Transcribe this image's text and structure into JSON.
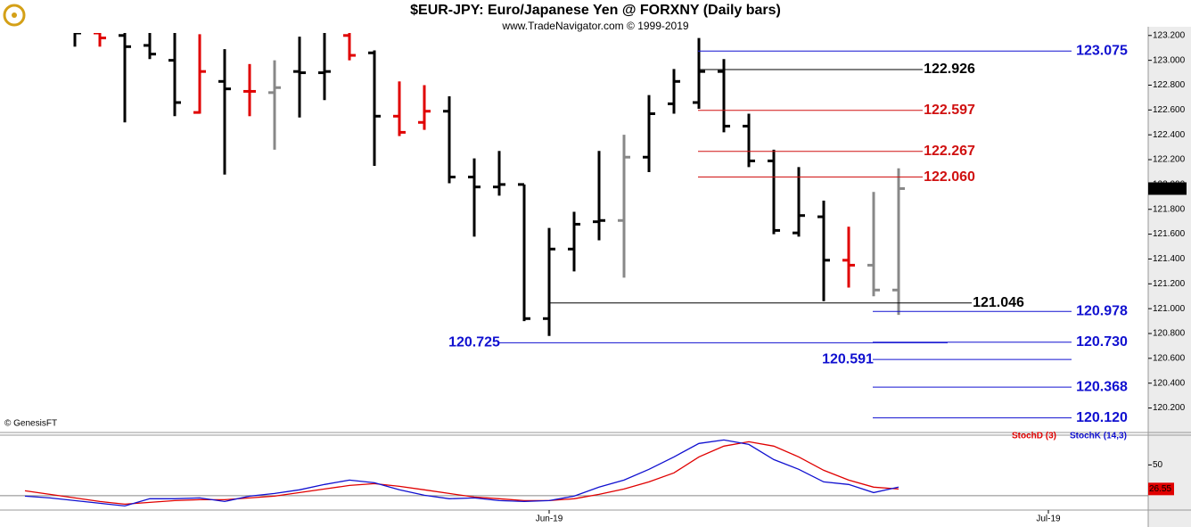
{
  "chart_data": [
    {
      "type": "ohlc",
      "title": "$EUR-JPY:  Euro/Japanese Yen @ FORXNY  (Daily bars)",
      "subtitle": "www.TradeNavigator.com © 1999-2019",
      "credit": "© GenesisFT",
      "x": [
        0,
        1,
        2,
        3,
        4,
        5,
        6,
        7,
        8,
        9,
        10,
        11,
        12,
        13,
        14,
        15,
        16,
        17,
        18,
        19,
        20,
        21,
        22,
        23,
        24,
        25,
        26,
        27,
        28,
        29,
        30,
        31,
        32,
        33
      ],
      "open": [
        123.25,
        123.22,
        123.2,
        123.12,
        123.0,
        122.58,
        122.83,
        122.75,
        122.74,
        122.91,
        122.9,
        123.2,
        123.06,
        122.55,
        122.5,
        122.59,
        122.06,
        121.98,
        122.0,
        120.92,
        121.48,
        121.7,
        121.71,
        122.22,
        122.65,
        122.66,
        122.91,
        122.47,
        122.19,
        121.61,
        121.74,
        121.39,
        121.35,
        121.15
      ],
      "high": [
        123.3,
        123.25,
        123.3,
        123.28,
        123.25,
        123.21,
        123.09,
        122.97,
        123.0,
        123.19,
        123.25,
        123.25,
        123.08,
        122.83,
        122.8,
        122.71,
        122.21,
        122.27,
        122.0,
        121.65,
        121.78,
        122.27,
        122.4,
        122.72,
        122.93,
        123.18,
        123.01,
        122.57,
        122.28,
        122.14,
        121.87,
        121.66,
        121.94,
        122.13
      ],
      "low": [
        123.11,
        123.11,
        122.5,
        123.01,
        122.55,
        122.57,
        122.08,
        122.55,
        122.28,
        122.54,
        122.68,
        123.0,
        122.15,
        122.39,
        122.44,
        122.01,
        121.58,
        121.91,
        120.9,
        120.78,
        121.3,
        121.55,
        121.25,
        122.1,
        122.57,
        122.61,
        122.42,
        122.14,
        121.6,
        121.58,
        121.06,
        121.17,
        121.1,
        120.95
      ],
      "close": [
        123.22,
        123.18,
        123.11,
        123.05,
        122.66,
        122.91,
        122.77,
        122.75,
        122.78,
        122.9,
        122.91,
        123.04,
        122.55,
        122.42,
        122.59,
        122.06,
        121.98,
        122.0,
        120.92,
        121.48,
        121.68,
        121.71,
        122.22,
        122.57,
        122.83,
        122.91,
        122.47,
        122.19,
        121.63,
        121.75,
        121.39,
        121.35,
        121.15,
        121.967
      ],
      "colors": [
        "#000",
        "#e00000",
        "#000",
        "#000",
        "#000",
        "#e00000",
        "#000",
        "#e00000",
        "#888",
        "#000",
        "#000",
        "#e00000",
        "#000",
        "#e00000",
        "#e00000",
        "#000",
        "#000",
        "#000",
        "#000",
        "#000",
        "#000",
        "#000",
        "#888",
        "#000",
        "#000",
        "#000",
        "#000",
        "#000",
        "#000",
        "#000",
        "#000",
        "#e00000",
        "#888",
        "#888"
      ],
      "last_price": 121.967,
      "xlim": [
        -3,
        43
      ],
      "ylim": [
        120.01,
        123.22
      ],
      "xticks": [
        {
          "value": 19,
          "label": "Jun-19"
        },
        {
          "value": 39,
          "label": "Jul-19"
        }
      ],
      "yticks": [
        {
          "value": 120.2,
          "label": "120.200"
        },
        {
          "value": 120.4,
          "label": "120.400"
        },
        {
          "value": 120.6,
          "label": "120.600"
        },
        {
          "value": 120.8,
          "label": "120.800"
        },
        {
          "value": 121.0,
          "label": "121.000"
        },
        {
          "value": 121.2,
          "label": "121.200"
        },
        {
          "value": 121.4,
          "label": "121.400"
        },
        {
          "value": 121.6,
          "label": "121.600"
        },
        {
          "value": 121.8,
          "label": "121.800"
        },
        {
          "value": 122.0,
          "label": "122.000"
        },
        {
          "value": 122.2,
          "label": "122.200"
        },
        {
          "value": 122.4,
          "label": "122.400"
        },
        {
          "value": 122.6,
          "label": "122.600"
        },
        {
          "value": 122.8,
          "label": "122.800"
        },
        {
          "value": 123.0,
          "label": "123.000"
        },
        {
          "value": 123.2,
          "label": "123.200"
        }
      ],
      "levels": {
        "values": [
          123.075,
          122.926,
          122.597,
          122.267,
          122.06,
          121.046,
          120.978,
          120.725,
          120.73,
          120.591,
          120.368,
          120.12
        ],
        "value_labels": [
          "123.075",
          "122.926",
          "122.597",
          "122.267",
          "122.060",
          "121.046",
          "120.978",
          "120.725",
          "120.730",
          "120.591",
          "120.368",
          "120.120"
        ],
        "colors": [
          "#1010d0",
          "#000",
          "#d01010",
          "#d01010",
          "#d01010",
          "#000",
          "#1010d0",
          "#1010d0",
          "#1010d0",
          "#1010d0",
          "#1010d0",
          "#1010d0"
        ]
      }
    },
    {
      "type": "line",
      "x": [
        -2,
        -1,
        0,
        1,
        2,
        3,
        4,
        5,
        6,
        7,
        8,
        9,
        10,
        11,
        12,
        13,
        14,
        15,
        16,
        17,
        18,
        19,
        20,
        21,
        22,
        23,
        24,
        25,
        26,
        27,
        28,
        29,
        30,
        31,
        32,
        33
      ],
      "series": [
        {
          "name": "StochD (3)",
          "color": "#e00000",
          "values": [
            24.8,
            21.3,
            17.8,
            14.3,
            11.7,
            13.5,
            15.2,
            16.1,
            16.1,
            17.8,
            19.6,
            23.0,
            26.5,
            30.0,
            31.7,
            29.1,
            25.7,
            22.2,
            18.7,
            17.0,
            15.2,
            15.2,
            17.0,
            21.3,
            26.5,
            33.5,
            42.2,
            57.8,
            68.3,
            72.6,
            68.3,
            57.8,
            44.8,
            35.2,
            28.3,
            26.55
          ],
          "value_labels_last": "26.55"
        },
        {
          "name": "StochK (14,3)",
          "color": "#1010d0",
          "values": [
            19.6,
            17.8,
            15.2,
            12.6,
            10.0,
            17.0,
            17.0,
            17.8,
            14.3,
            19.6,
            22.2,
            25.7,
            30.9,
            35.2,
            32.6,
            25.7,
            20.4,
            17.0,
            17.8,
            15.2,
            14.3,
            15.2,
            19.6,
            28.3,
            35.2,
            45.7,
            57.8,
            70.9,
            74.3,
            70.0,
            55.2,
            45.7,
            33.5,
            30.9,
            23.0,
            28.3
          ]
        }
      ],
      "reference_lines": [
        20
      ],
      "ylim": [
        6,
        79
      ],
      "yticks": [
        50
      ]
    }
  ]
}
